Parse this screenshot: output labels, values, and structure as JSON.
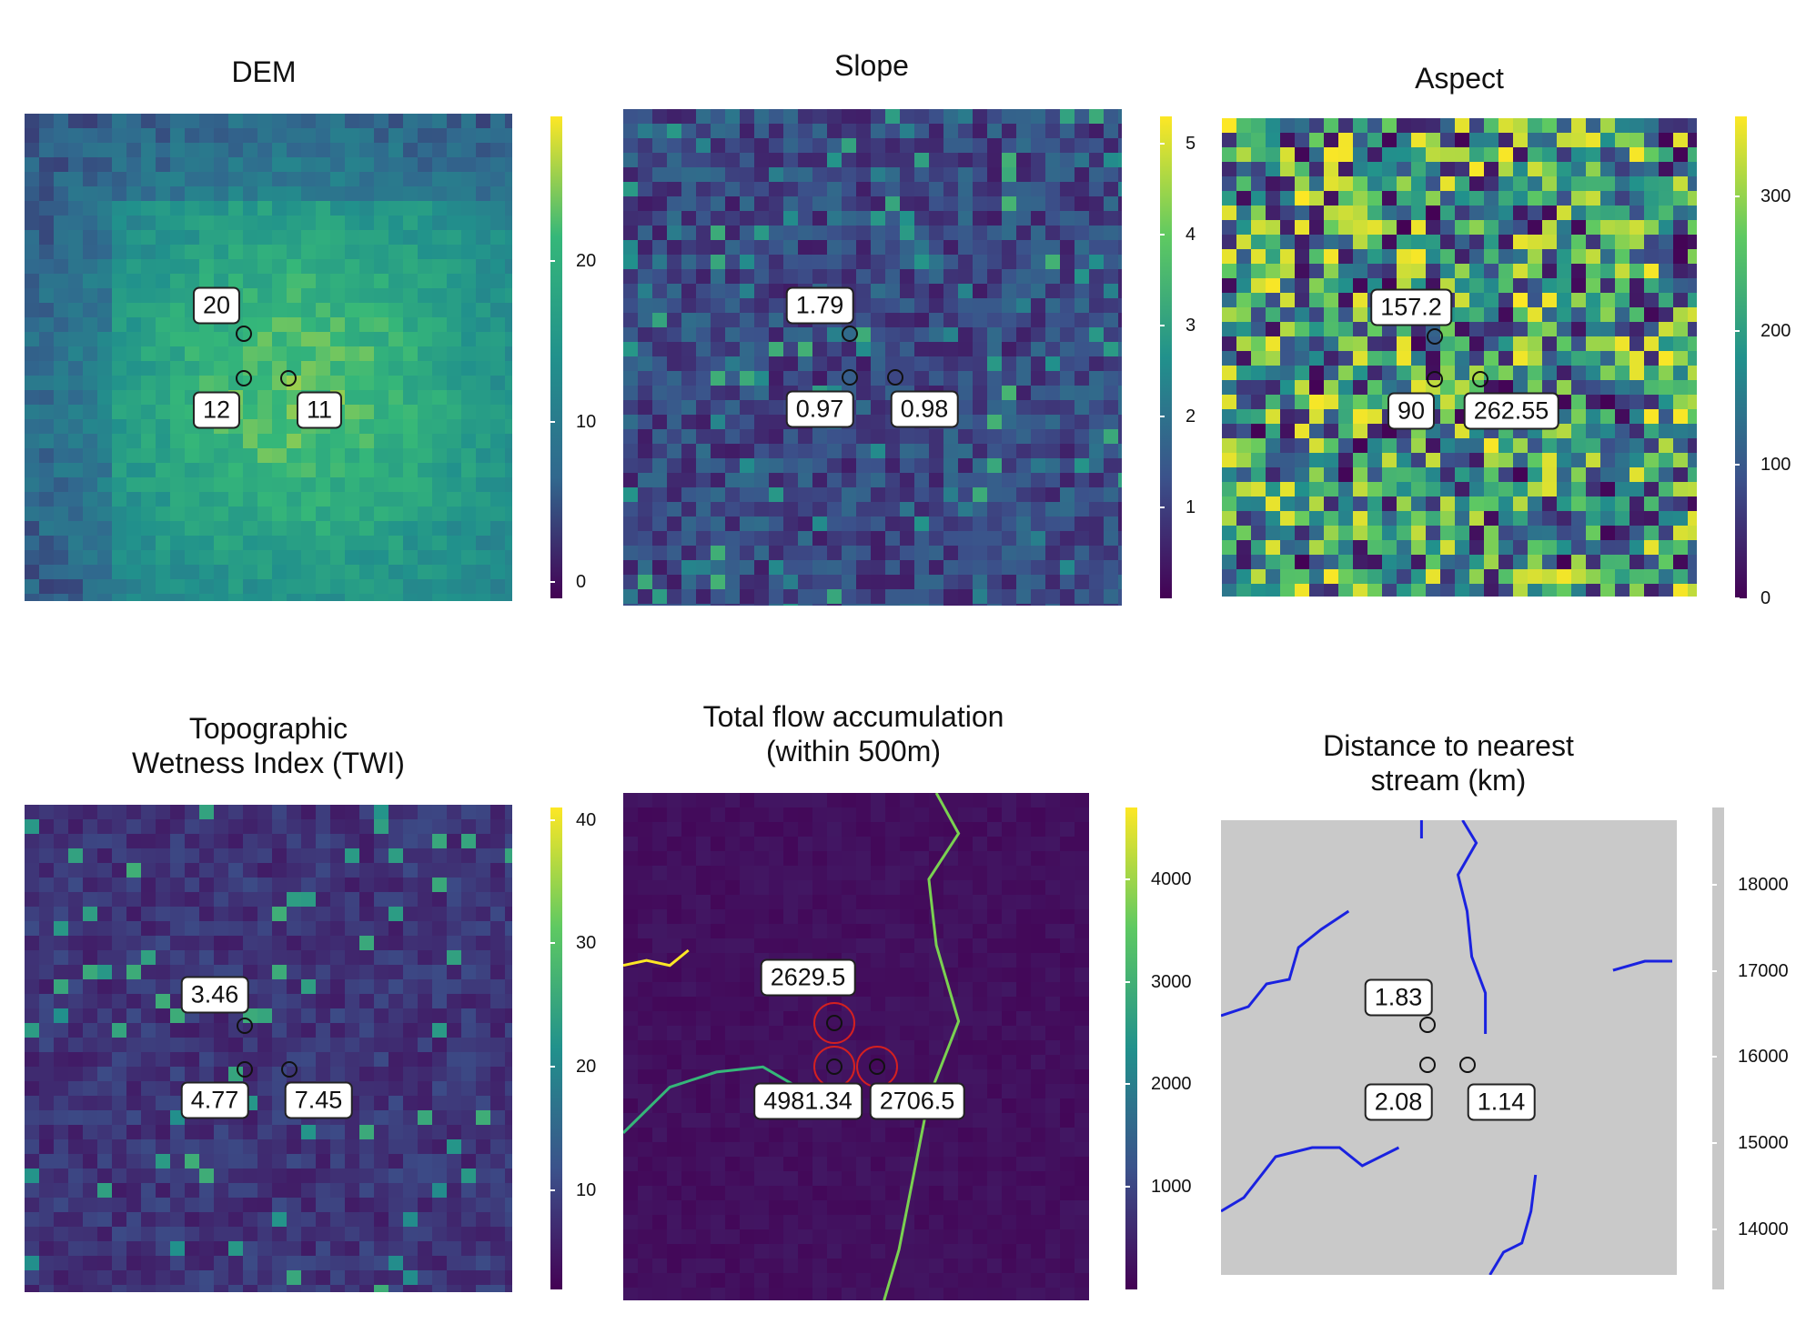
{
  "panels": [
    {
      "title": "DEM",
      "colors": [
        "#440154",
        "#31688e",
        "#21918c",
        "#35b779",
        "#fde725"
      ],
      "bg": "#2a788e",
      "colorbar": {
        "min": -1,
        "max": 29,
        "ticks": [
          {
            "v": 0,
            "label": "0"
          },
          {
            "v": 10,
            "label": "10"
          },
          {
            "v": 20,
            "label": "20"
          }
        ]
      },
      "points": [
        {
          "label": "20",
          "value": 20
        },
        {
          "label": "12",
          "value": 12
        },
        {
          "label": "11",
          "value": 11
        }
      ]
    },
    {
      "title": "Slope",
      "colors": [
        "#440154",
        "#3b528b",
        "#21918c",
        "#5ec962",
        "#fde725"
      ],
      "bg": "#2d1b5e",
      "colorbar": {
        "min": 0,
        "max": 5.3,
        "ticks": [
          {
            "v": 1,
            "label": "1"
          },
          {
            "v": 2,
            "label": "2"
          },
          {
            "v": 3,
            "label": "3"
          },
          {
            "v": 4,
            "label": "4"
          },
          {
            "v": 5,
            "label": "5"
          }
        ]
      },
      "points": [
        {
          "label": "1.79",
          "value": 1.79
        },
        {
          "label": "0.97",
          "value": 0.97
        },
        {
          "label": "0.98",
          "value": 0.98
        }
      ]
    },
    {
      "title": "Aspect",
      "colors": [
        "#440154",
        "#3b528b",
        "#21918c",
        "#5ec962",
        "#fde725"
      ],
      "bg": "#3d9a6f",
      "colorbar": {
        "min": 0,
        "max": 360,
        "ticks": [
          {
            "v": 0,
            "label": "0"
          },
          {
            "v": 100,
            "label": "100"
          },
          {
            "v": 200,
            "label": "200"
          },
          {
            "v": 300,
            "label": "300"
          }
        ]
      },
      "points": [
        {
          "label": "157.2",
          "value": 157.2
        },
        {
          "label": "90",
          "value": 90
        },
        {
          "label": "262.55",
          "value": 262.55
        }
      ]
    },
    {
      "title": "Topographic\nWetness Index (TWI)",
      "colors": [
        "#440154",
        "#3b528b",
        "#21918c",
        "#5ec962",
        "#fde725"
      ],
      "bg": "#2c1f5a",
      "colorbar": {
        "min": 2,
        "max": 41,
        "ticks": [
          {
            "v": 10,
            "label": "10"
          },
          {
            "v": 20,
            "label": "20"
          },
          {
            "v": 30,
            "label": "30"
          },
          {
            "v": 40,
            "label": "40"
          }
        ]
      },
      "points": [
        {
          "label": "3.46",
          "value": 3.46
        },
        {
          "label": "4.77",
          "value": 4.77
        },
        {
          "label": "7.45",
          "value": 7.45
        }
      ]
    },
    {
      "title": "Total flow accumulation\n(within 500m)",
      "colors": [
        "#440154",
        "#3b528b",
        "#21918c",
        "#5ec962",
        "#fde725"
      ],
      "bg": "#3a0551",
      "colorbar": {
        "min": 0,
        "max": 4700,
        "ticks": [
          {
            "v": 1000,
            "label": "1000"
          },
          {
            "v": 2000,
            "label": "2000"
          },
          {
            "v": 3000,
            "label": "3000"
          },
          {
            "v": 4000,
            "label": "4000"
          }
        ]
      },
      "points": [
        {
          "label": "2629.5",
          "value": 2629.5
        },
        {
          "label": "4981.34",
          "value": 4981.34
        },
        {
          "label": "2706.5",
          "value": 2706.5
        }
      ]
    },
    {
      "title": "Distance to nearest\nstream (km)",
      "colors": [
        "#c8c8c8",
        "#c8c8c8"
      ],
      "bg": "#c9c9c9",
      "stream_color": "#1a22e0",
      "colorbar": {
        "min": 13300,
        "max": 18900,
        "ticks": [
          {
            "v": 14000,
            "label": "14000"
          },
          {
            "v": 15000,
            "label": "15000"
          },
          {
            "v": 16000,
            "label": "16000"
          },
          {
            "v": 17000,
            "label": "17000"
          },
          {
            "v": 18000,
            "label": "18000"
          }
        ]
      },
      "points": [
        {
          "label": "1.83",
          "value": 1.83
        },
        {
          "label": "2.08",
          "value": 2.08
        },
        {
          "label": "1.14",
          "value": 1.14
        }
      ]
    }
  ]
}
